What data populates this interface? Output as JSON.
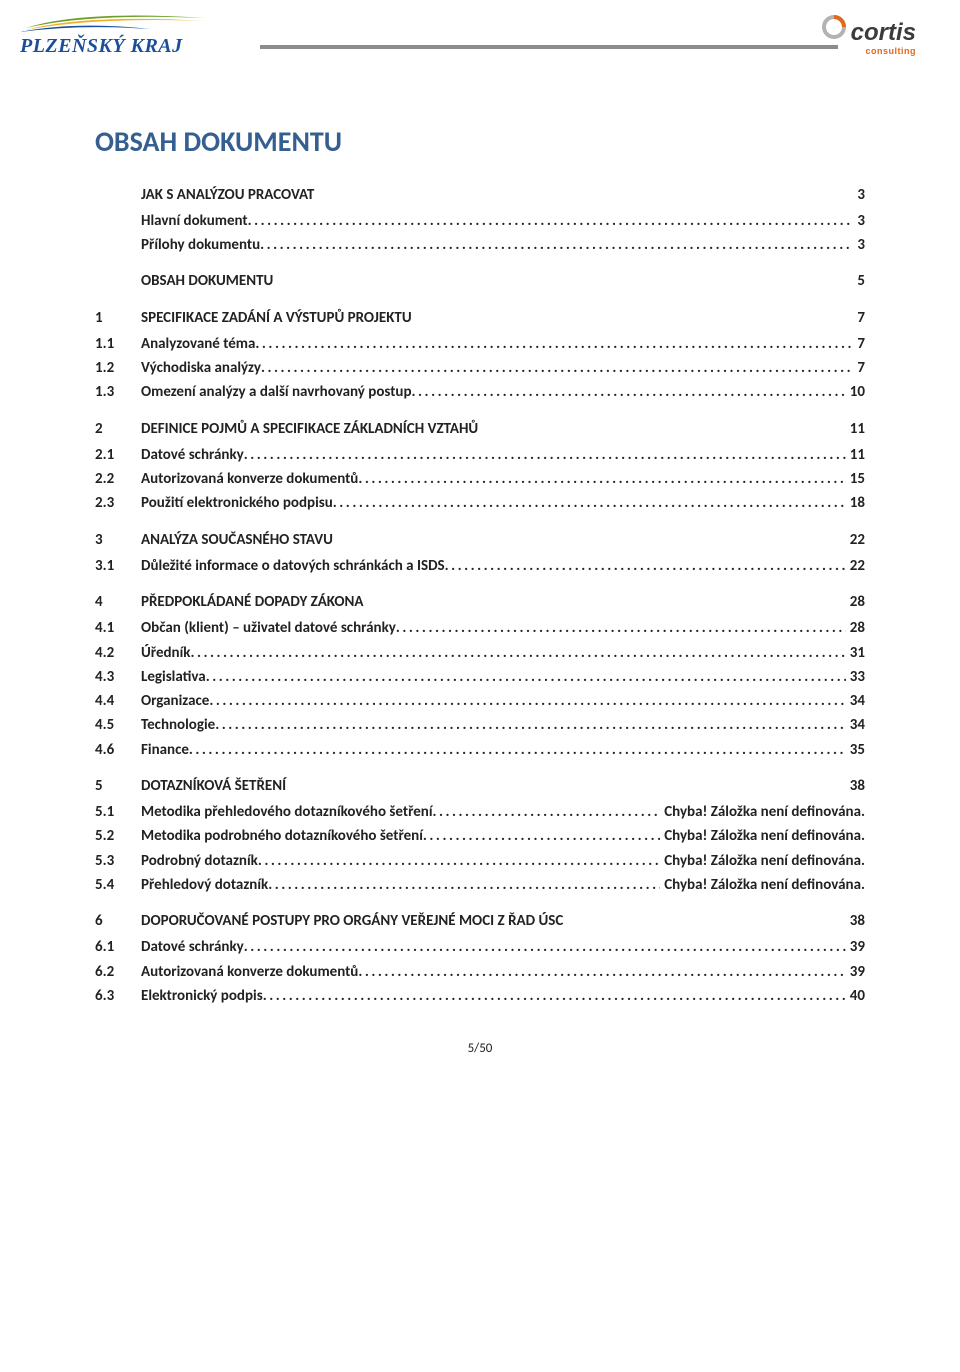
{
  "brand_left": {
    "text": "PLZEŇSKÝ KRAJ",
    "text_color": "#1b4f9b",
    "swoosh_colors": {
      "green": "#6aa024",
      "yellow": "#f2b01e",
      "blue": "#1b4f9b"
    }
  },
  "brand_right": {
    "name": "cortis",
    "sub": "consulting",
    "ring_colors": {
      "outer": "#b3b3b3",
      "accent": "#e06a1b"
    }
  },
  "title": "OBSAH DOKUMENTU",
  "footer_page": "5/50",
  "toc": [
    {
      "type": "section",
      "num": "",
      "label": "JAK S ANALÝZOU PRACOVAT",
      "page": "3"
    },
    {
      "type": "sub",
      "num": "",
      "label": "Hlavní dokument",
      "page": "3"
    },
    {
      "type": "sub",
      "num": "",
      "label": "Přílohy dokumentu",
      "page": "3"
    },
    {
      "type": "section",
      "num": "",
      "label": "OBSAH DOKUMENTU",
      "page": "5"
    },
    {
      "type": "section",
      "num": "1",
      "label": "SPECIFIKACE ZADÁNÍ A VÝSTUPŮ PROJEKTU",
      "page": "7"
    },
    {
      "type": "sub",
      "num": "1.1",
      "label": "Analyzované téma",
      "page": "7"
    },
    {
      "type": "sub",
      "num": "1.2",
      "label": "Východiska analýzy",
      "page": "7"
    },
    {
      "type": "sub",
      "num": "1.3",
      "label": "Omezení analýzy a další navrhovaný postup",
      "page": "10"
    },
    {
      "type": "section",
      "num": "2",
      "label": "DEFINICE POJMŮ A SPECIFIKACE ZÁKLADNÍCH VZTAHŮ",
      "page": "11"
    },
    {
      "type": "sub",
      "num": "2.1",
      "label": "Datové schránky",
      "page": "11"
    },
    {
      "type": "sub",
      "num": "2.2",
      "label": "Autorizovaná konverze dokumentů",
      "page": "15"
    },
    {
      "type": "sub",
      "num": "2.3",
      "label": "Použití elektronického podpisu",
      "page": "18"
    },
    {
      "type": "section",
      "num": "3",
      "label": "ANALÝZA SOUČASNÉHO STAVU",
      "page": "22"
    },
    {
      "type": "sub",
      "num": "3.1",
      "label": "Důležité informace o datových schránkách a ISDS",
      "page": "22"
    },
    {
      "type": "section",
      "num": "4",
      "label": "PŘEDPOKLÁDANÉ DOPADY ZÁKONA",
      "page": "28"
    },
    {
      "type": "sub",
      "num": "4.1",
      "label": "Občan (klient) – uživatel datové schránky",
      "page": "28"
    },
    {
      "type": "sub",
      "num": "4.2",
      "label": "Úředník",
      "page": "31"
    },
    {
      "type": "sub",
      "num": "4.3",
      "label": "Legislativa",
      "page": "33"
    },
    {
      "type": "sub",
      "num": "4.4",
      "label": "Organizace",
      "page": "34"
    },
    {
      "type": "sub",
      "num": "4.5",
      "label": "Technologie",
      "page": "34"
    },
    {
      "type": "sub",
      "num": "4.6",
      "label": "Finance",
      "page": "35"
    },
    {
      "type": "section",
      "num": "5",
      "label": "DOTAZNÍKOVÁ ŠETŘENÍ",
      "page": "38"
    },
    {
      "type": "sub",
      "num": "5.1",
      "label": "Metodika přehledového dotazníkového šetření",
      "page": "Chyba! Záložka není definována."
    },
    {
      "type": "sub",
      "num": "5.2",
      "label": "Metodika podrobného dotazníkového šetření",
      "page": "Chyba! Záložka není definována."
    },
    {
      "type": "sub",
      "num": "5.3",
      "label": "Podrobný dotazník",
      "page": "Chyba! Záložka není definována."
    },
    {
      "type": "sub",
      "num": "5.4",
      "label": "Přehledový dotazník",
      "page": "Chyba! Záložka není definována."
    },
    {
      "type": "section",
      "num": "6",
      "label": "DOPORUČOVANÉ POSTUPY PRO ORGÁNY VEŘEJNÉ MOCI Z ŘAD ÚSC",
      "page": "38"
    },
    {
      "type": "sub",
      "num": "6.1",
      "label": "Datové schránky",
      "page": "39"
    },
    {
      "type": "sub",
      "num": "6.2",
      "label": "Autorizovaná konverze dokumentů",
      "page": "39"
    },
    {
      "type": "sub",
      "num": "6.3",
      "label": "Elektronický podpis",
      "page": "40"
    }
  ]
}
